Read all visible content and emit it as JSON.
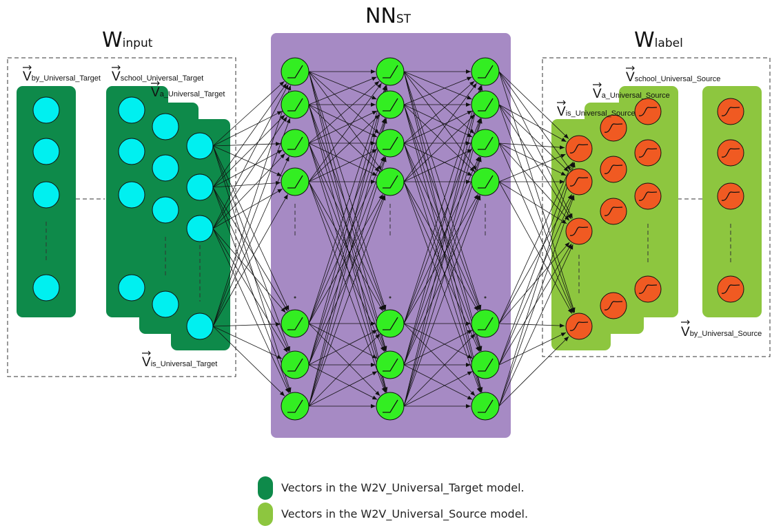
{
  "titles": {
    "input": {
      "main": "W",
      "sub": "input"
    },
    "network": {
      "main": "NN",
      "sub": "ST"
    },
    "label": {
      "main": "W",
      "sub": "label"
    }
  },
  "input_vectors": {
    "by": {
      "main": "V",
      "sub": "by_Universal_Target"
    },
    "school": {
      "main": "V",
      "sub": "school_Universal_Target"
    },
    "a": {
      "main": "V",
      "sub": "a_Universal_Target"
    },
    "is": {
      "main": "V",
      "sub": "is_Universal_Target"
    }
  },
  "label_vectors": {
    "school": {
      "main": "V",
      "sub": "school_Universal_Source"
    },
    "a": {
      "main": "V",
      "sub": "a_Universal_Source"
    },
    "is": {
      "main": "V",
      "sub": "is_Universal_Source"
    },
    "by": {
      "main": "V",
      "sub": "by_Universal_Source"
    }
  },
  "legend": [
    {
      "text": "Vectors in the W2V_Universal_Target model.",
      "color": "#0e8a4a"
    },
    {
      "text": "Vectors in the W2V_Universal_Source model.",
      "color": "#8dc63f"
    }
  ],
  "colors": {
    "target_vector": "#0e8a4a",
    "source_vector": "#8dc63f",
    "input_neuron": "#00f0f0",
    "hidden_neuron": "#33ee22",
    "output_neuron": "#f05a22",
    "network_bg": "#a68ac4"
  }
}
